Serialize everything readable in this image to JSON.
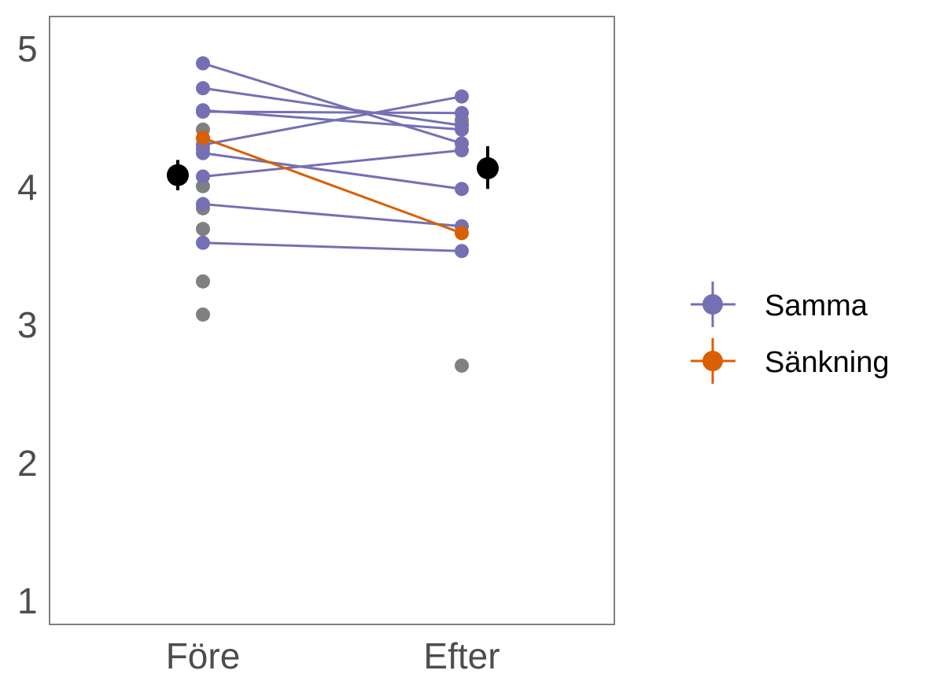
{
  "chart_data": {
    "type": "scatter",
    "title": "",
    "xlabel": "",
    "ylabel": "",
    "categories": [
      "Före",
      "Efter"
    ],
    "ylim": [
      0.8,
      5.2
    ],
    "y_ticks": [
      "1",
      "2",
      "3",
      "4",
      "5"
    ],
    "grid": false,
    "legend_position": "right",
    "colors": {
      "Samma": "#7570b3",
      "Sänkning": "#d95f02",
      "excluded": "#808080",
      "mean": "#000000"
    },
    "series": [
      {
        "name": "Samma",
        "pairs": [
          [
            4.9,
            4.32
          ],
          [
            4.72,
            4.45
          ],
          [
            4.56,
            4.42
          ],
          [
            4.55,
            4.54
          ],
          [
            4.31,
            4.66
          ],
          [
            4.25,
            3.99
          ],
          [
            4.08,
            4.27
          ],
          [
            3.88,
            3.72
          ],
          [
            3.6,
            3.54
          ]
        ]
      },
      {
        "name": "Sänkning",
        "pairs": [
          [
            4.36,
            3.67
          ]
        ]
      }
    ],
    "excluded_points": {
      "Före": [
        4.42,
        4.28,
        4.01,
        3.85,
        3.7,
        3.32,
        3.08
      ],
      "Efter": [
        4.49,
        4.46,
        2.71
      ]
    },
    "means": [
      {
        "category": "Före",
        "mean": 4.09,
        "lower": 3.98,
        "upper": 4.2
      },
      {
        "category": "Efter",
        "mean": 4.14,
        "lower": 3.99,
        "upper": 4.3
      }
    ]
  }
}
